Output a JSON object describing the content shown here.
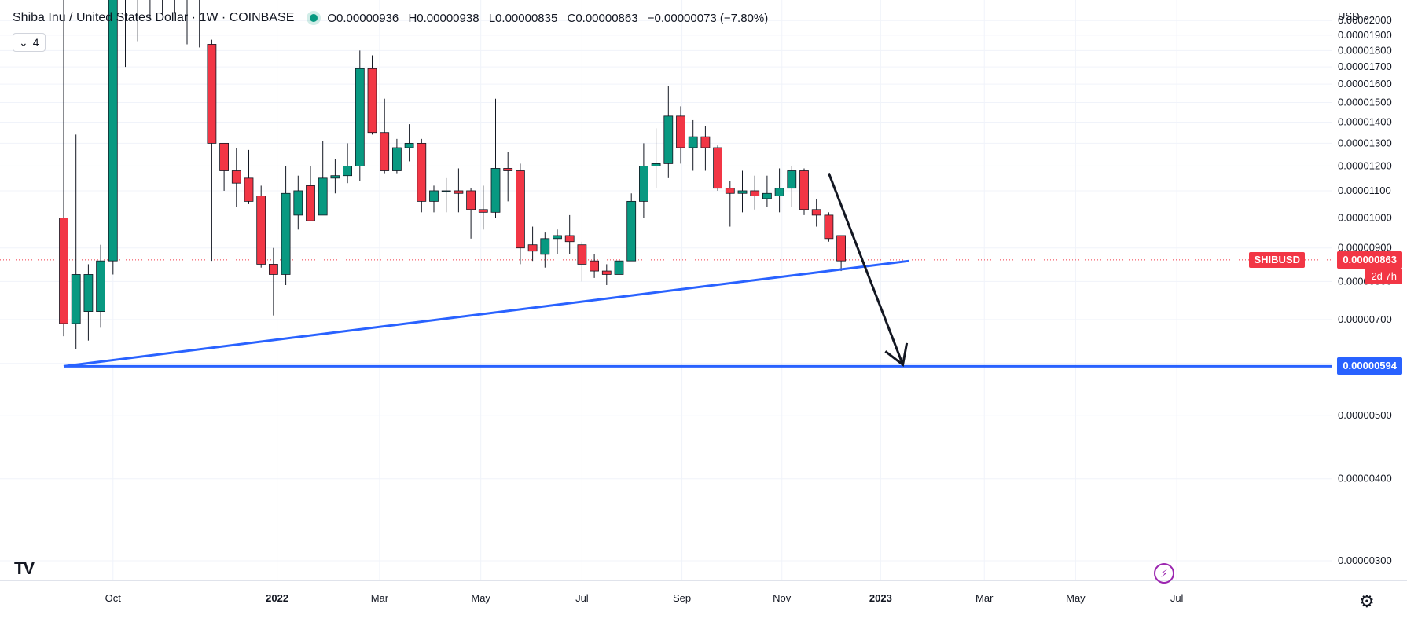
{
  "header": {
    "symbol_title": "Shiba Inu / United States Dollar · 1W · COINBASE",
    "open": "O0.00000936",
    "high": "H0.00000938",
    "low": "L0.00000835",
    "close": "C0.00000863",
    "change": "−0.00000073 (−7.80%)",
    "collapse_count": "4"
  },
  "currency_label": "USD",
  "last_price": {
    "symbol": "SHIBUSD",
    "value": "0.00000863",
    "countdown": "2d 7h"
  },
  "level_label": "0.00000594",
  "logo_text": "TV",
  "colors": {
    "up": "#089981",
    "down": "#f23645",
    "trendline": "#2962ff",
    "arrow": "#131722",
    "grid": "#f0f3fa",
    "price_line": "#f23645"
  },
  "chart_data": {
    "type": "candlestick",
    "interval": "1W",
    "y_scale": "log",
    "ylim": [
      2.8e-06,
      2.15e-05
    ],
    "y_ticks": [
      "0.00000300",
      "0.00000400",
      "0.00000500",
      "0.00000600",
      "0.00000700",
      "0.00000800",
      "0.00000900",
      "0.00001000",
      "0.00001100",
      "0.00001200",
      "0.00001300",
      "0.00001400",
      "0.00001500",
      "0.00001600",
      "0.00001700",
      "0.00001800",
      "0.00001900",
      "0.00002000"
    ],
    "x_ticks": [
      "Oct",
      "2022",
      "Mar",
      "May",
      "Jul",
      "Sep",
      "Nov",
      "2023",
      "Mar",
      "May",
      "Jul"
    ],
    "candles": [
      {
        "o": 1e-05,
        "h": 2.45e-05,
        "l": 6.6e-06,
        "c": 6.9e-06
      },
      {
        "o": 6.9e-06,
        "h": 1.34e-05,
        "l": 6.3e-06,
        "c": 8.2e-06
      },
      {
        "o": 7.2e-06,
        "h": 8.5e-06,
        "l": 6.5e-06,
        "c": 8.2e-06
      },
      {
        "o": 7.2e-06,
        "h": 9.1e-06,
        "l": 6.8e-06,
        "c": 8.6e-06
      },
      {
        "o": 8.6e-06,
        "h": 3e-05,
        "l": 8.2e-06,
        "c": 3e-05
      },
      {
        "o": 3e-05,
        "h": 3e-05,
        "l": 1.7e-05,
        "c": 3e-05
      },
      {
        "o": 3e-05,
        "h": 3e-05,
        "l": 1.86e-05,
        "c": 3e-05
      },
      {
        "o": 3e-05,
        "h": 3e-05,
        "l": 2.01e-05,
        "c": 3e-05
      },
      {
        "o": 3e-05,
        "h": 3e-05,
        "l": 2.05e-05,
        "c": 3e-05
      },
      {
        "o": 3e-05,
        "h": 3e-05,
        "l": 2.05e-05,
        "c": 3e-05
      },
      {
        "o": 3e-05,
        "h": 3e-05,
        "l": 1.84e-05,
        "c": 3e-05
      },
      {
        "o": 3e-05,
        "h": 3e-05,
        "l": 1.82e-05,
        "c": 3e-05
      },
      {
        "o": 1.84e-05,
        "h": 1.87e-05,
        "l": 8.6e-06,
        "c": 1.3e-05
      },
      {
        "o": 1.3e-05,
        "h": 1.3e-05,
        "l": 1.1e-05,
        "c": 1.18e-05
      },
      {
        "o": 1.18e-05,
        "h": 1.28e-05,
        "l": 1.04e-05,
        "c": 1.13e-05
      },
      {
        "o": 1.15e-05,
        "h": 1.27e-05,
        "l": 1.05e-05,
        "c": 1.06e-05
      },
      {
        "o": 1.08e-05,
        "h": 1.12e-05,
        "l": 8.4e-06,
        "c": 8.5e-06
      },
      {
        "o": 8.5e-06,
        "h": 9e-06,
        "l": 7.1e-06,
        "c": 8.2e-06
      },
      {
        "o": 8.2e-06,
        "h": 1.2e-05,
        "l": 7.9e-06,
        "c": 1.09e-05
      },
      {
        "o": 1.01e-05,
        "h": 1.16e-05,
        "l": 9.6e-06,
        "c": 1.1e-05
      },
      {
        "o": 1.12e-05,
        "h": 1.2e-05,
        "l": 1e-05,
        "c": 9.9e-06
      },
      {
        "o": 1.01e-05,
        "h": 1.31e-05,
        "l": 1.01e-05,
        "c": 1.15e-05
      },
      {
        "o": 1.15e-05,
        "h": 1.23e-05,
        "l": 1.09e-05,
        "c": 1.16e-05
      },
      {
        "o": 1.16e-05,
        "h": 1.3e-05,
        "l": 1.13e-05,
        "c": 1.2e-05
      },
      {
        "o": 1.2e-05,
        "h": 1.8e-05,
        "l": 1.14e-05,
        "c": 1.69e-05
      },
      {
        "o": 1.69e-05,
        "h": 1.77e-05,
        "l": 1.34e-05,
        "c": 1.35e-05
      },
      {
        "o": 1.35e-05,
        "h": 1.52e-05,
        "l": 1.17e-05,
        "c": 1.18e-05
      },
      {
        "o": 1.18e-05,
        "h": 1.32e-05,
        "l": 1.17e-05,
        "c": 1.28e-05
      },
      {
        "o": 1.28e-05,
        "h": 1.39e-05,
        "l": 1.22e-05,
        "c": 1.3e-05
      },
      {
        "o": 1.3e-05,
        "h": 1.32e-05,
        "l": 1.02e-05,
        "c": 1.06e-05
      },
      {
        "o": 1.06e-05,
        "h": 1.12e-05,
        "l": 1.02e-05,
        "c": 1.1e-05
      },
      {
        "o": 1.1e-05,
        "h": 1.15e-05,
        "l": 1.02e-05,
        "c": 1.1e-05
      },
      {
        "o": 1.1e-05,
        "h": 1.19e-05,
        "l": 1.02e-05,
        "c": 1.09e-05
      },
      {
        "o": 1.1e-05,
        "h": 1.11e-05,
        "l": 9.3e-06,
        "c": 1.03e-05
      },
      {
        "o": 1.03e-05,
        "h": 1.12e-05,
        "l": 9.6e-06,
        "c": 1.02e-05
      },
      {
        "o": 1.02e-05,
        "h": 1.52e-05,
        "l": 1e-05,
        "c": 1.19e-05
      },
      {
        "o": 1.19e-05,
        "h": 1.26e-05,
        "l": 1.06e-05,
        "c": 1.18e-05
      },
      {
        "o": 1.18e-05,
        "h": 1.21e-05,
        "l": 8.5e-06,
        "c": 9e-06
      },
      {
        "o": 9.1e-06,
        "h": 9.7e-06,
        "l": 8.6e-06,
        "c": 8.9e-06
      },
      {
        "o": 8.8e-06,
        "h": 9.5e-06,
        "l": 8.4e-06,
        "c": 9.3e-06
      },
      {
        "o": 9.3e-06,
        "h": 9.6e-06,
        "l": 8.8e-06,
        "c": 9.4e-06
      },
      {
        "o": 9.4e-06,
        "h": 1.01e-05,
        "l": 8.8e-06,
        "c": 9.2e-06
      },
      {
        "o": 9.1e-06,
        "h": 9.2e-06,
        "l": 8e-06,
        "c": 8.5e-06
      },
      {
        "o": 8.6e-06,
        "h": 8.8e-06,
        "l": 8.1e-06,
        "c": 8.3e-06
      },
      {
        "o": 8.3e-06,
        "h": 8.5e-06,
        "l": 7.9e-06,
        "c": 8.2e-06
      },
      {
        "o": 8.2e-06,
        "h": 8.8e-06,
        "l": 8.1e-06,
        "c": 8.6e-06
      },
      {
        "o": 8.6e-06,
        "h": 1.09e-05,
        "l": 8.6e-06,
        "c": 1.06e-05
      },
      {
        "o": 1.06e-05,
        "h": 1.3e-05,
        "l": 1e-05,
        "c": 1.2e-05
      },
      {
        "o": 1.2e-05,
        "h": 1.37e-05,
        "l": 1.11e-05,
        "c": 1.21e-05
      },
      {
        "o": 1.21e-05,
        "h": 1.59e-05,
        "l": 1.15e-05,
        "c": 1.43e-05
      },
      {
        "o": 1.43e-05,
        "h": 1.48e-05,
        "l": 1.21e-05,
        "c": 1.28e-05
      },
      {
        "o": 1.28e-05,
        "h": 1.41e-05,
        "l": 1.18e-05,
        "c": 1.33e-05
      },
      {
        "o": 1.33e-05,
        "h": 1.38e-05,
        "l": 1.18e-05,
        "c": 1.28e-05
      },
      {
        "o": 1.28e-05,
        "h": 1.29e-05,
        "l": 1.1e-05,
        "c": 1.11e-05
      },
      {
        "o": 1.11e-05,
        "h": 1.14e-05,
        "l": 9.7e-06,
        "c": 1.09e-05
      },
      {
        "o": 1.09e-05,
        "h": 1.18e-05,
        "l": 1.02e-05,
        "c": 1.1e-05
      },
      {
        "o": 1.1e-05,
        "h": 1.16e-05,
        "l": 1.03e-05,
        "c": 1.08e-05
      },
      {
        "o": 1.07e-05,
        "h": 1.16e-05,
        "l": 1.04e-05,
        "c": 1.09e-05
      },
      {
        "o": 1.08e-05,
        "h": 1.19e-05,
        "l": 1.02e-05,
        "c": 1.11e-05
      },
      {
        "o": 1.11e-05,
        "h": 1.2e-05,
        "l": 1.04e-05,
        "c": 1.18e-05
      },
      {
        "o": 1.18e-05,
        "h": 1.19e-05,
        "l": 1.01e-05,
        "c": 1.03e-05
      },
      {
        "o": 1.03e-05,
        "h": 1.07e-05,
        "l": 9.7e-06,
        "c": 1.01e-05
      },
      {
        "o": 1.01e-05,
        "h": 1.02e-05,
        "l": 9.2e-06,
        "c": 9.3e-06
      },
      {
        "o": 9.4e-06,
        "h": 9.4e-06,
        "l": 8.3e-06,
        "c": 8.6e-06
      }
    ],
    "last_price": 8.63e-06,
    "horizontal_level": 5.94e-06,
    "trendline": {
      "from": {
        "candle": 0,
        "price": 5.94e-06
      },
      "to": {
        "candle": 68.5,
        "price": 8.6e-06
      }
    },
    "arrow": {
      "from": {
        "candle": 62,
        "price": 1.17e-05
      },
      "to": {
        "candle": 68,
        "price": 5.94e-06
      }
    }
  }
}
